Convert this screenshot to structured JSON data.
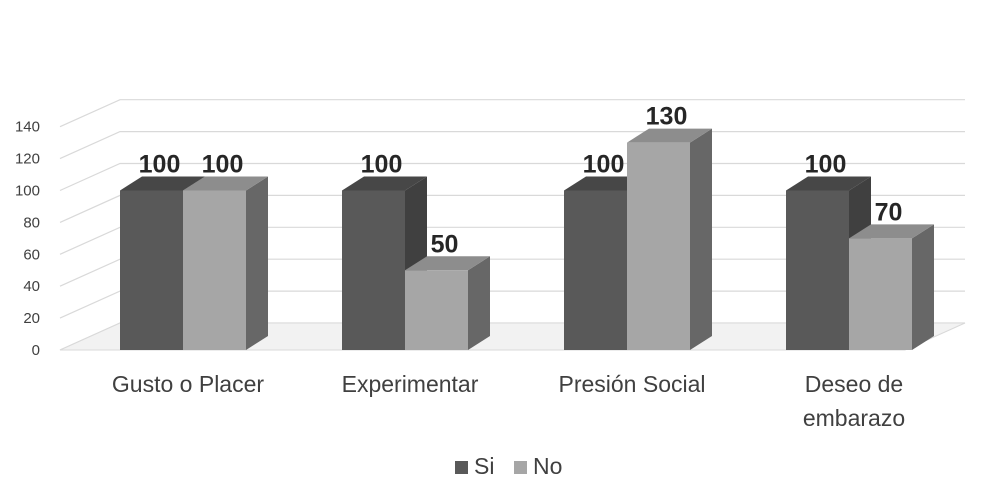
{
  "chart_data": {
    "type": "bar",
    "title": "",
    "xlabel": "",
    "ylabel": "",
    "categories": [
      "Gusto o Placer",
      "Experimentar",
      "Presión Social",
      "Deseo de embarazo"
    ],
    "category_lines": [
      [
        "Gusto o Placer"
      ],
      [
        "Experimentar"
      ],
      [
        "Presión Social"
      ],
      [
        "Deseo de",
        "embarazo"
      ]
    ],
    "series": [
      {
        "name": "Si",
        "values": [
          100,
          100,
          100,
          100
        ],
        "color": "#595959"
      },
      {
        "name": "No",
        "values": [
          100,
          50,
          130,
          70
        ],
        "color": "#a6a6a6"
      }
    ],
    "ylim": [
      0,
      140
    ],
    "yticks": [
      0,
      20,
      40,
      60,
      80,
      100,
      120,
      140
    ],
    "grid": true,
    "legend_position": "bottom",
    "style": "3d-column",
    "data_labels": true
  }
}
